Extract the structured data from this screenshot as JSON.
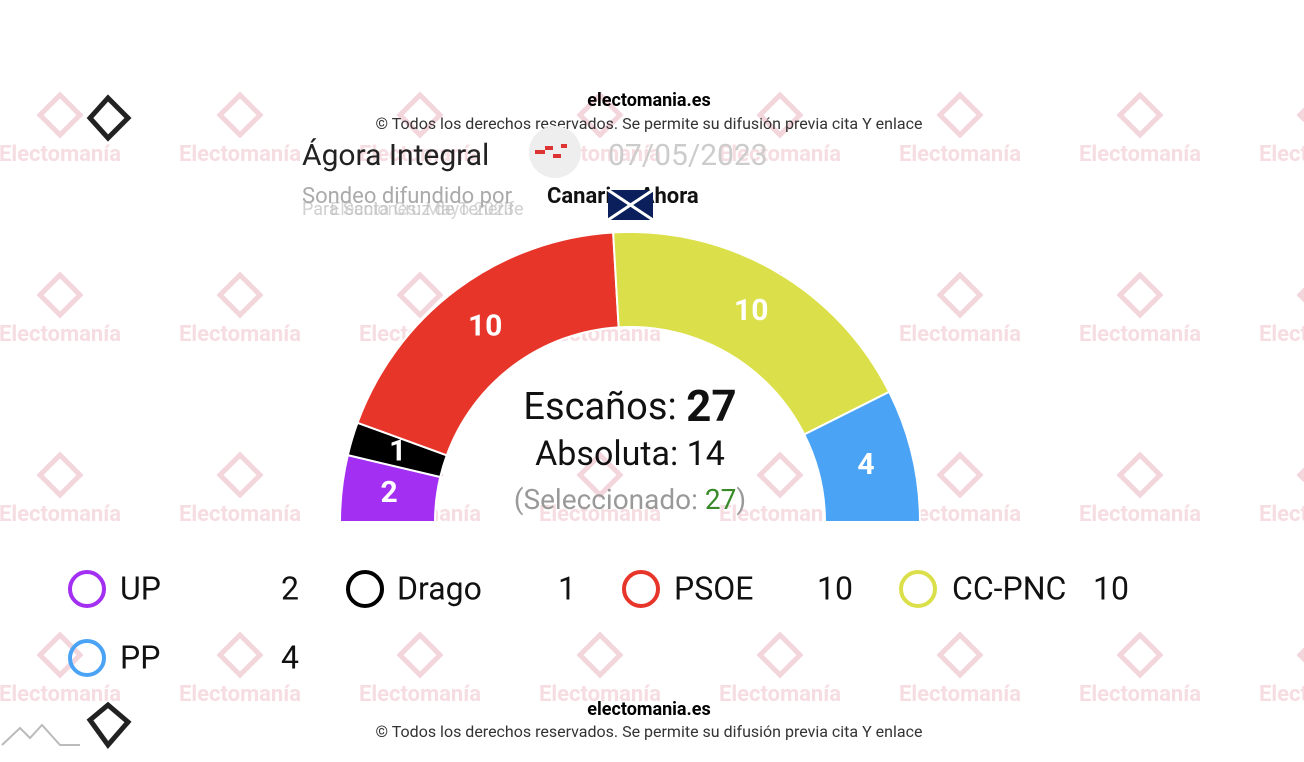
{
  "header": {
    "site": "electomania.es",
    "copyright": "© Todos los derechos reservados. Se permite su difusión previa cita Y enlace",
    "pollster": "Ágora Integral",
    "date": "07/05/2023",
    "published_by": "Sondeo difundido por",
    "media": "Canarias Ahora",
    "scope": "Para Santa Cruz de Tenerife",
    "election": "Elecciones: Mayo 2023"
  },
  "watermark": "Electomanía",
  "chart_data": {
    "type": "hemicycle",
    "categories": [
      "UP",
      "Drago",
      "PSOE",
      "CC-PNC",
      "PP"
    ],
    "values": [
      2,
      1,
      10,
      10,
      4
    ],
    "colors": [
      "#a22ff2",
      "#000000",
      "#e8352a",
      "#dbe04a",
      "#4aa3f5"
    ],
    "total_label": "Escaños:",
    "total": 27,
    "majority_label": "Absoluta:",
    "majority": 14,
    "selected_label": "(Seleccionado:",
    "selected": 27,
    "selected_close": ")"
  },
  "footer": {
    "site": "electomania.es",
    "copyright": "© Todos los derechos reservados. Se permite su difusión previa cita Y enlace"
  }
}
